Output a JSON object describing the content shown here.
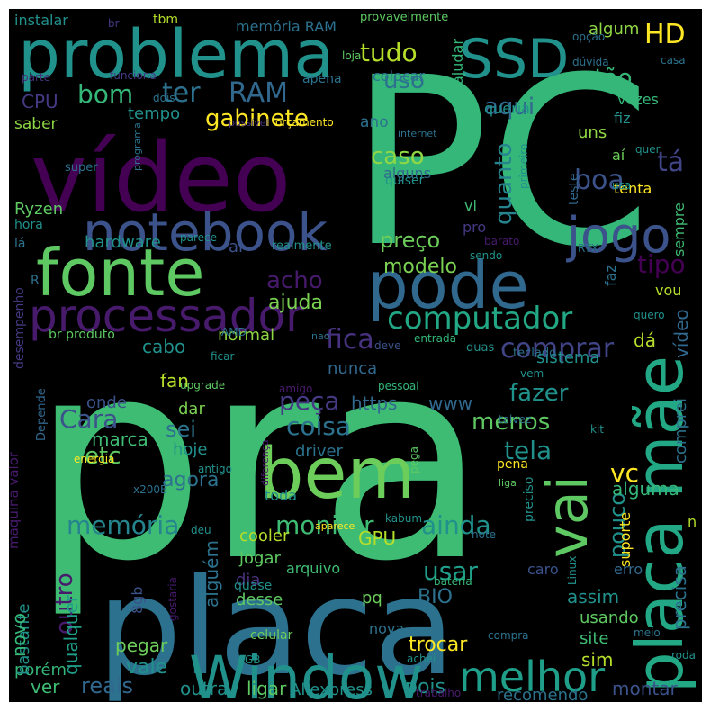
{
  "word_cloud": {
    "background": "#000000",
    "palette": [
      "#440154",
      "#3b528b",
      "#21918c",
      "#5ec962",
      "#fde725",
      "#31688e",
      "#35b779",
      "#443983"
    ],
    "words": [
      {
        "text": "PC",
        "color": "#35b779"
      },
      {
        "text": "pra",
        "color": "#3fbc73"
      },
      {
        "text": "placa",
        "color": "#2c728e"
      },
      {
        "text": "vídeo",
        "color": "#440154"
      },
      {
        "text": "problema",
        "color": "#21918c"
      },
      {
        "text": "bem",
        "color": "#6ccd5a"
      },
      {
        "text": "fonte",
        "color": "#5ec962"
      },
      {
        "text": "pode",
        "color": "#31688e"
      },
      {
        "text": "notebook",
        "color": "#3b528b"
      },
      {
        "text": "Window",
        "color": "#21918c"
      },
      {
        "text": "placa mãe",
        "color": "#22a884"
      },
      {
        "text": "SSD",
        "color": "#21918c"
      },
      {
        "text": "jogo",
        "color": "#3b528b"
      },
      {
        "text": "processador",
        "color": "#481a6c"
      },
      {
        "text": "vai",
        "color": "#5ec962"
      },
      {
        "text": "melhor",
        "color": "#1f9e89"
      },
      {
        "text": "computador",
        "color": "#22a884"
      },
      {
        "text": "memória",
        "color": "#25848e"
      },
      {
        "text": "monitor",
        "color": "#3fbc73"
      },
      {
        "text": "ainda",
        "color": "#21918c"
      },
      {
        "text": "usar",
        "color": "#1f9e89"
      },
      {
        "text": "RAM",
        "color": "#31688e"
      },
      {
        "text": "ter",
        "color": "#2c728e"
      },
      {
        "text": "HD",
        "color": "#fde725"
      },
      {
        "text": "gabinete",
        "color": "#fde725"
      },
      {
        "text": "bom",
        "color": "#35b779"
      },
      {
        "text": "tudo",
        "color": "#b5de2b"
      },
      {
        "text": "uso",
        "color": "#2c728e"
      },
      {
        "text": "então",
        "color": "#35b779"
      },
      {
        "text": "aqui",
        "color": "#31688e"
      },
      {
        "text": "boa",
        "color": "#3b528b"
      },
      {
        "text": "tá",
        "color": "#414487"
      },
      {
        "text": "caso",
        "color": "#8fd744"
      },
      {
        "text": "quanto",
        "color": "#25848e"
      },
      {
        "text": "preço",
        "color": "#6ccd5a"
      },
      {
        "text": "tipo",
        "color": "#440154"
      },
      {
        "text": "acho",
        "color": "#481a6c"
      },
      {
        "text": "modelo",
        "color": "#7ad151"
      },
      {
        "text": "ajuda",
        "color": "#7ad151"
      },
      {
        "text": "fica",
        "color": "#46327e"
      },
      {
        "text": "comprar",
        "color": "#414487"
      },
      {
        "text": "fazer",
        "color": "#21918c"
      },
      {
        "text": "menos",
        "color": "#5ec962"
      },
      {
        "text": "tela",
        "color": "#21918c"
      },
      {
        "text": "vc",
        "color": "#fde725"
      },
      {
        "text": "coisa",
        "color": "#2c728e"
      },
      {
        "text": "peça",
        "color": "#443983"
      },
      {
        "text": "https",
        "color": "#31688e"
      },
      {
        "text": "www",
        "color": "#31688e"
      },
      {
        "text": "Cara",
        "color": "#3b528b"
      },
      {
        "text": "sei",
        "color": "#2c728e"
      },
      {
        "text": "etc",
        "color": "#5ec962"
      },
      {
        "text": "fan",
        "color": "#b5de2b"
      },
      {
        "text": "cabo",
        "color": "#21918c"
      },
      {
        "text": "normal",
        "color": "#8fd744"
      },
      {
        "text": "dá",
        "color": "#b5de2b"
      },
      {
        "text": "vídeo",
        "color": "#31688e"
      },
      {
        "text": "comprei",
        "color": "#2c728e"
      },
      {
        "text": "sistema",
        "color": "#21918c"
      },
      {
        "text": "nunca",
        "color": "#31688e"
      },
      {
        "text": "onde",
        "color": "#3b528b"
      },
      {
        "text": "marca",
        "color": "#3fbc73"
      },
      {
        "text": "dar",
        "color": "#7ad151"
      },
      {
        "text": "hoje",
        "color": "#21918c"
      },
      {
        "text": "driver",
        "color": "#2c728e"
      },
      {
        "text": "agora",
        "color": "#2c728e"
      },
      {
        "text": "pouco",
        "color": "#21918c"
      },
      {
        "text": "alguma",
        "color": "#35b779"
      },
      {
        "text": "GPU",
        "color": "#b5de2b"
      },
      {
        "text": "cooler",
        "color": "#b5de2b"
      },
      {
        "text": "jogar",
        "color": "#5ec962"
      },
      {
        "text": "outro",
        "color": "#481a6c"
      },
      {
        "text": "alguém",
        "color": "#2c728e"
      },
      {
        "text": "dia",
        "color": "#46327e"
      },
      {
        "text": "arquivo",
        "color": "#3fbc73"
      },
      {
        "text": "caro",
        "color": "#3b528b"
      },
      {
        "text": "erro",
        "color": "#31688e"
      },
      {
        "text": "precisa",
        "color": "#2c728e"
      },
      {
        "text": "suporte",
        "color": "#fde725"
      },
      {
        "text": "BIO",
        "color": "#2c728e"
      },
      {
        "text": "assim",
        "color": "#21918c"
      },
      {
        "text": "usando",
        "color": "#5ec962"
      },
      {
        "text": "site",
        "color": "#3fbc73"
      },
      {
        "text": "sim",
        "color": "#b5de2b"
      },
      {
        "text": "trocar",
        "color": "#fde725"
      },
      {
        "text": "pegar",
        "color": "#6ccd5a"
      },
      {
        "text": "vale",
        "color": "#21918c"
      },
      {
        "text": "reais",
        "color": "#31688e"
      },
      {
        "text": "outra",
        "color": "#21918c"
      },
      {
        "text": "ligar",
        "color": "#5ec962"
      },
      {
        "text": "Aliexpress",
        "color": "#21918c"
      },
      {
        "text": "pois",
        "color": "#21918c"
      },
      {
        "text": "recomendo",
        "color": "#2c728e"
      },
      {
        "text": "montar",
        "color": "#3b528b"
      },
      {
        "text": "porém",
        "color": "#35b779"
      },
      {
        "text": "ver",
        "color": "#3fbc73"
      },
      {
        "text": "qualquer",
        "color": "#1f9e89"
      },
      {
        "text": "bastante",
        "color": "#21918c"
      },
      {
        "text": "novo",
        "color": "#35b779"
      },
      {
        "text": "desse",
        "color": "#5ec962"
      },
      {
        "text": "pq",
        "color": "#6ccd5a"
      },
      {
        "text": "nova",
        "color": "#2c728e"
      },
      {
        "text": "quase",
        "color": "#21918c"
      },
      {
        "text": "celular",
        "color": "#6ccd5a"
      },
      {
        "text": "8gb",
        "color": "#3b528b"
      },
      {
        "text": "Ryzen",
        "color": "#5ec962"
      },
      {
        "text": "hardware",
        "color": "#21918c"
      },
      {
        "text": "ai",
        "color": "#3b528b"
      },
      {
        "text": "realmente",
        "color": "#21918c"
      },
      {
        "text": "CPU",
        "color": "#443983"
      },
      {
        "text": "tempo",
        "color": "#21918c"
      },
      {
        "text": "saber",
        "color": "#8fd744"
      },
      {
        "text": "instalar",
        "color": "#21918c"
      },
      {
        "text": "memória RAM",
        "color": "#2c728e"
      },
      {
        "text": "provavelmente",
        "color": "#5ec962"
      },
      {
        "text": "algum",
        "color": "#8fd744"
      },
      {
        "text": "vezes",
        "color": "#35b779"
      },
      {
        "text": "queria",
        "color": "#21918c"
      },
      {
        "text": "ano",
        "color": "#2c728e"
      },
      {
        "text": "uns",
        "color": "#8fd744"
      },
      {
        "text": "fiz",
        "color": "#21918c"
      },
      {
        "text": "aí",
        "color": "#6ccd5a"
      },
      {
        "text": "tenta",
        "color": "#fde725"
      },
      {
        "text": "sempre",
        "color": "#3fbc73"
      },
      {
        "text": "faz",
        "color": "#2c728e"
      },
      {
        "text": "vou",
        "color": "#b5de2b"
      },
      {
        "text": "teste",
        "color": "#31688e"
      },
      {
        "text": "RTX",
        "color": "#2c728e"
      },
      {
        "text": "alguns",
        "color": "#31688e"
      },
      {
        "text": "quiser",
        "color": "#21918c"
      },
      {
        "text": "pro",
        "color": "#443983"
      },
      {
        "text": "vi",
        "color": "#3fbc73"
      },
      {
        "text": "sendo",
        "color": "#21918c"
      },
      {
        "text": "barato",
        "color": "#481a6c"
      },
      {
        "text": "colocar",
        "color": "#2c728e"
      },
      {
        "text": "ajudar",
        "color": "#35b779"
      },
      {
        "text": "loja",
        "color": "#5ec962"
      },
      {
        "text": "opção",
        "color": "#2c728e"
      },
      {
        "text": "dúvida",
        "color": "#2c728e"
      },
      {
        "text": "casa",
        "color": "#2c728e"
      },
      {
        "text": "apena",
        "color": "#2c728e"
      },
      {
        "text": "funciona",
        "color": "#443983"
      },
      {
        "text": "dois",
        "color": "#2c728e"
      },
      {
        "text": "parte",
        "color": "#46327e"
      },
      {
        "text": "possível",
        "color": "#46327e"
      },
      {
        "text": "orçamento",
        "color": "#fde725"
      },
      {
        "text": "internet",
        "color": "#2c728e"
      },
      {
        "text": "programa",
        "color": "#2c728e"
      },
      {
        "text": "primeiro",
        "color": "#21918c"
      },
      {
        "text": "quer",
        "color": "#21918c"
      },
      {
        "text": "usa",
        "color": "#21918c"
      },
      {
        "text": "super",
        "color": "#2c728e"
      },
      {
        "text": "hora",
        "color": "#21918c"
      },
      {
        "text": "lá",
        "color": "#2c728e"
      },
      {
        "text": "parece",
        "color": "#21918c"
      },
      {
        "text": "R",
        "color": "#2c728e"
      },
      {
        "text": "quero",
        "color": "#21918c"
      },
      {
        "text": "br produto",
        "color": "#5ec962"
      },
      {
        "text": "AMD",
        "color": "#2c728e"
      },
      {
        "text": "nao",
        "color": "#2c728e"
      },
      {
        "text": "deve",
        "color": "#3b528b"
      },
      {
        "text": "entrada",
        "color": "#35b779"
      },
      {
        "text": "duas",
        "color": "#21918c"
      },
      {
        "text": "teclado",
        "color": "#2c728e"
      },
      {
        "text": "vem",
        "color": "#21918c"
      },
      {
        "text": "desempenho",
        "color": "#443983"
      },
      {
        "text": "ficar",
        "color": "#21918c"
      },
      {
        "text": "upgrade",
        "color": "#5ec962"
      },
      {
        "text": "pessoal",
        "color": "#35b779"
      },
      {
        "text": "amigo",
        "color": "#481a6c"
      },
      {
        "text": "talvez",
        "color": "#2c728e"
      },
      {
        "text": "kit",
        "color": "#21918c"
      },
      {
        "text": "maquina valor",
        "color": "#481a6c"
      },
      {
        "text": "Depende",
        "color": "#31688e"
      },
      {
        "text": "energia",
        "color": "#fde725"
      },
      {
        "text": "antigo",
        "color": "#21918c"
      },
      {
        "text": "diferença",
        "color": "#481a6c"
      },
      {
        "text": "pega",
        "color": "#5ec962"
      },
      {
        "text": "pena",
        "color": "#fde725"
      },
      {
        "text": "liga",
        "color": "#5ec962"
      },
      {
        "text": "preciso",
        "color": "#21918c"
      },
      {
        "text": "x200B",
        "color": "#2c728e"
      },
      {
        "text": "toda",
        "color": "#21918c"
      },
      {
        "text": "aparece",
        "color": "#fde725"
      },
      {
        "text": "kabum",
        "color": "#21918c"
      },
      {
        "text": "note",
        "color": "#2c728e"
      },
      {
        "text": "n",
        "color": "#b5de2b"
      },
      {
        "text": "deu",
        "color": "#21918c"
      },
      {
        "text": "gostaria",
        "color": "#481a6c"
      },
      {
        "text": "bateria",
        "color": "#35b779"
      },
      {
        "text": "Linux",
        "color": "#21918c"
      },
      {
        "text": "compra",
        "color": "#2c728e"
      },
      {
        "text": "meio",
        "color": "#2c728e"
      },
      {
        "text": "roda",
        "color": "#21918c"
      },
      {
        "text": "GB",
        "color": "#21918c"
      },
      {
        "text": "achei",
        "color": "#21918c"
      },
      {
        "text": "trabalho",
        "color": "#481a6c"
      },
      {
        "text": "br",
        "color": "#443983"
      },
      {
        "text": "tbm",
        "color": "#b5de2b"
      }
    ]
  }
}
